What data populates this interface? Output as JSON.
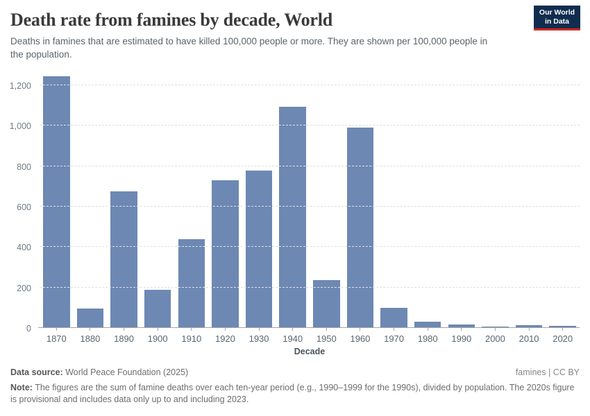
{
  "header": {
    "title": "Death rate from famines by decade, World",
    "subtitle": "Deaths in famines that are estimated to have killed 100,000 people or more. They are shown per 100,000 people in the population.",
    "logo": {
      "line1": "Our World",
      "line2": "in Data",
      "bg_color": "#102d4f",
      "accent_color": "#d6281c"
    }
  },
  "chart_data": {
    "type": "bar",
    "title": "Death rate from famines by decade, World",
    "xlabel": "Decade",
    "ylabel": "",
    "categories": [
      "1870",
      "1880",
      "1890",
      "1900",
      "1910",
      "1920",
      "1930",
      "1940",
      "1950",
      "1960",
      "1970",
      "1980",
      "1990",
      "2000",
      "2010",
      "2020"
    ],
    "values": [
      1243,
      95,
      675,
      190,
      440,
      730,
      780,
      1095,
      235,
      990,
      100,
      30,
      18,
      8,
      15,
      12
    ],
    "yticks": [
      0,
      200,
      400,
      600,
      800,
      1000,
      1200
    ],
    "ylim": [
      0,
      1262
    ],
    "grid": true,
    "legend": false,
    "bar_color": "#6d88b3",
    "gridline_color": "#dfdfdf",
    "axis_color": "#a3a3a3"
  },
  "footer": {
    "source_label": "Data source:",
    "source_value": " World Peace Foundation (2025)",
    "license": "famines | CC BY",
    "note_label": "Note:",
    "note_value": " The figures are the sum of famine deaths over each ten-year period (e.g., 1990–1999 for the 1990s), divided by population. The 2020s figure is provisional and includes data only up to and including 2023."
  }
}
